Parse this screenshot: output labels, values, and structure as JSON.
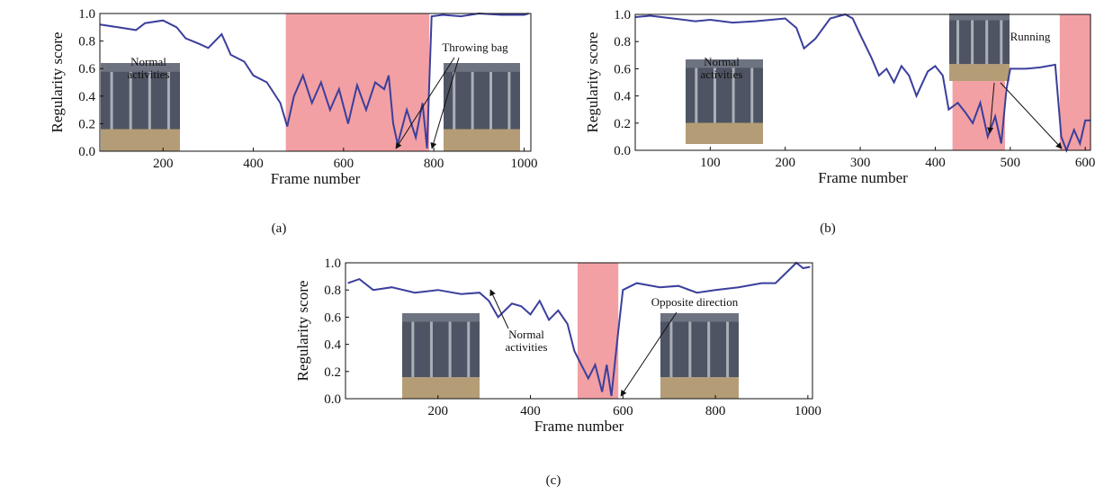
{
  "chart_data": [
    {
      "type": "line",
      "panel_label": "(a)",
      "xlabel": "Frame number",
      "ylabel": "Regularity score",
      "color": "#3b3f9c",
      "highlight_color": "#f2a0a4",
      "x": [
        60,
        100,
        140,
        160,
        200,
        230,
        250,
        280,
        300,
        330,
        350,
        380,
        400,
        430,
        460,
        475,
        490,
        510,
        530,
        550,
        570,
        590,
        610,
        630,
        650,
        670,
        690,
        700,
        710,
        720,
        740,
        760,
        775,
        785,
        795,
        820,
        860,
        900,
        950,
        1000,
        1010
      ],
      "values": [
        0.92,
        0.9,
        0.88,
        0.93,
        0.95,
        0.9,
        0.82,
        0.78,
        0.75,
        0.85,
        0.7,
        0.65,
        0.55,
        0.5,
        0.35,
        0.18,
        0.4,
        0.55,
        0.35,
        0.5,
        0.3,
        0.45,
        0.2,
        0.48,
        0.3,
        0.5,
        0.45,
        0.55,
        0.2,
        0.05,
        0.3,
        0.1,
        0.35,
        0.02,
        0.98,
        0.99,
        0.98,
        1.0,
        0.99,
        0.99,
        1.0
      ],
      "highlights": [
        [
          472,
          790
        ]
      ],
      "annotations": [
        {
          "lines": [
            "Normal",
            "activities"
          ]
        },
        {
          "lines": [
            "Throwing bag"
          ]
        }
      ],
      "xlim": [
        60,
        1015
      ],
      "xticks": [
        200,
        400,
        600,
        800,
        1000
      ],
      "ylim": [
        0,
        1
      ],
      "yticks": [
        {
          "value": 0,
          "label": "0.0"
        },
        {
          "value": 0.2,
          "label": "0.2"
        },
        {
          "value": 0.4,
          "label": "0.4"
        },
        {
          "value": 0.6,
          "label": "0.6"
        },
        {
          "value": 0.8,
          "label": "0.8"
        },
        {
          "value": 1,
          "label": "1.0"
        }
      ]
    },
    {
      "type": "line",
      "panel_label": "(b)",
      "xlabel": "Frame number",
      "ylabel": "Regularity score",
      "color": "#3b3f9c",
      "highlight_color": "#f2a0a4",
      "x": [
        0,
        20,
        50,
        80,
        100,
        130,
        160,
        200,
        215,
        225,
        240,
        260,
        280,
        290,
        300,
        315,
        325,
        335,
        345,
        355,
        365,
        375,
        390,
        400,
        410,
        418,
        430,
        440,
        450,
        460,
        470,
        480,
        488,
        495,
        500,
        520,
        540,
        560,
        568,
        575,
        585,
        593,
        600,
        607
      ],
      "values": [
        0.98,
        0.99,
        0.97,
        0.95,
        0.96,
        0.94,
        0.95,
        0.97,
        0.9,
        0.75,
        0.82,
        0.97,
        1.0,
        0.97,
        0.85,
        0.68,
        0.55,
        0.6,
        0.5,
        0.62,
        0.55,
        0.4,
        0.58,
        0.62,
        0.55,
        0.3,
        0.35,
        0.28,
        0.2,
        0.35,
        0.1,
        0.25,
        0.05,
        0.45,
        0.6,
        0.6,
        0.61,
        0.63,
        0.1,
        0.0,
        0.15,
        0.05,
        0.22,
        0.22
      ],
      "highlights": [
        [
          423,
          493
        ],
        [
          566,
          607
        ]
      ],
      "annotations": [
        {
          "lines": [
            "Normal",
            "activities"
          ]
        },
        {
          "lines": [
            "Running"
          ]
        }
      ],
      "xlim": [
        0,
        607
      ],
      "xticks": [
        100,
        200,
        300,
        400,
        500,
        600
      ],
      "ylim": [
        0,
        1
      ],
      "yticks": [
        {
          "value": 0,
          "label": "0.0"
        },
        {
          "value": 0.2,
          "label": "0.2"
        },
        {
          "value": 0.4,
          "label": "0.4"
        },
        {
          "value": 0.6,
          "label": "0.6"
        },
        {
          "value": 0.8,
          "label": "0.8"
        },
        {
          "value": 1,
          "label": "1.0"
        }
      ]
    },
    {
      "type": "line",
      "panel_label": "(c)",
      "xlabel": "Frame number",
      "ylabel": "Regularity score",
      "color": "#3b3f9c",
      "highlight_color": "#f2a0a4",
      "x": [
        5,
        30,
        60,
        100,
        150,
        200,
        250,
        290,
        310,
        330,
        360,
        380,
        400,
        420,
        440,
        460,
        480,
        495,
        510,
        525,
        540,
        555,
        565,
        575,
        590,
        600,
        630,
        680,
        720,
        760,
        800,
        850,
        900,
        930,
        960,
        975,
        990,
        1005
      ],
      "values": [
        0.85,
        0.88,
        0.8,
        0.82,
        0.78,
        0.8,
        0.77,
        0.78,
        0.72,
        0.6,
        0.7,
        0.68,
        0.62,
        0.72,
        0.58,
        0.65,
        0.55,
        0.35,
        0.25,
        0.15,
        0.25,
        0.05,
        0.25,
        0.02,
        0.5,
        0.8,
        0.85,
        0.82,
        0.83,
        0.78,
        0.8,
        0.82,
        0.85,
        0.85,
        0.95,
        1.0,
        0.96,
        0.97
      ],
      "highlights": [
        [
          502,
          590
        ]
      ],
      "annotations": [
        {
          "lines": [
            "Normal",
            "activities"
          ]
        },
        {
          "lines": [
            "Opposite direction"
          ]
        }
      ],
      "xlim": [
        0,
        1010
      ],
      "xticks": [
        200,
        400,
        600,
        800,
        1000
      ],
      "ylim": [
        0,
        1
      ],
      "yticks": [
        {
          "value": 0,
          "label": "0.0"
        },
        {
          "value": 0.2,
          "label": "0.2"
        },
        {
          "value": 0.4,
          "label": "0.4"
        },
        {
          "value": 0.6,
          "label": "0.6"
        },
        {
          "value": 0.8,
          "label": "0.8"
        },
        {
          "value": 1,
          "label": "1.0"
        }
      ]
    }
  ]
}
